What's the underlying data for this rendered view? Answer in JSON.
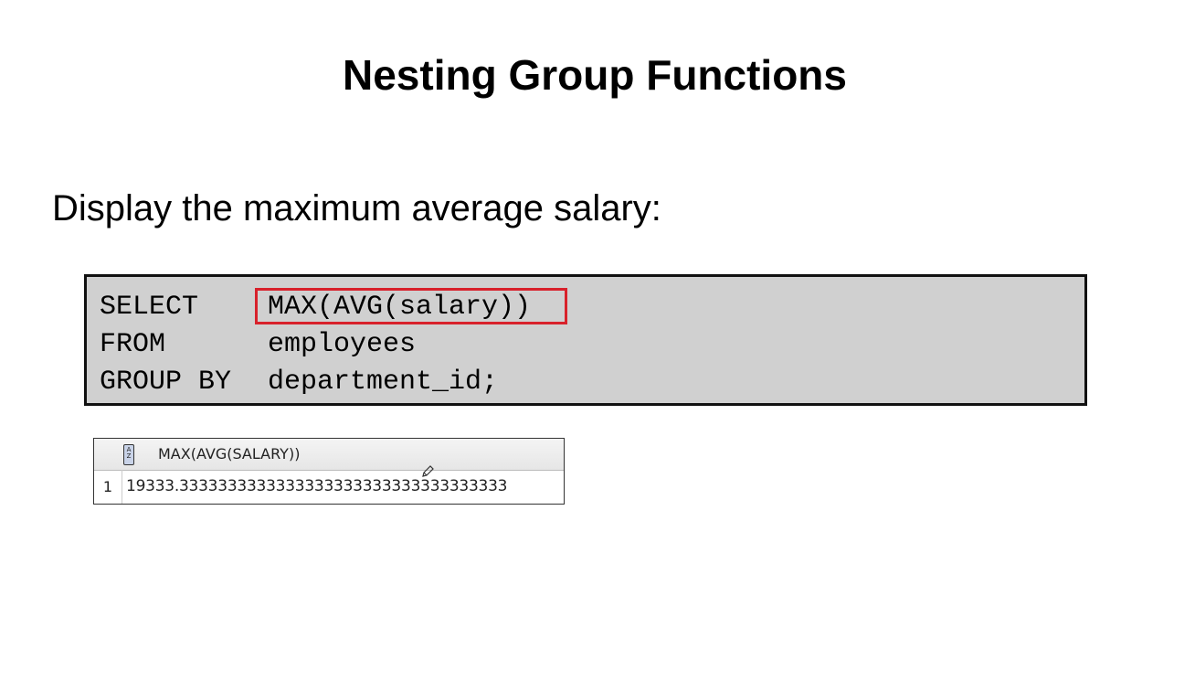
{
  "slide": {
    "title": "Nesting Group Functions",
    "subtitle": "Display the maximum average salary:"
  },
  "code": {
    "lines": [
      {
        "keyword": "SELECT",
        "argument": "MAX(AVG(salary))"
      },
      {
        "keyword": "FROM",
        "argument": "employees"
      },
      {
        "keyword": "GROUP BY",
        "argument": "department_id;"
      }
    ],
    "highlight_color": "#d8212b"
  },
  "result": {
    "icon": "column-type-icon",
    "icon_label": "A\nZ",
    "column_header": "MAX(AVG(SALARY))",
    "rows": [
      {
        "num": "1",
        "value": "19333.3333333333333333333333333333333333"
      }
    ]
  }
}
